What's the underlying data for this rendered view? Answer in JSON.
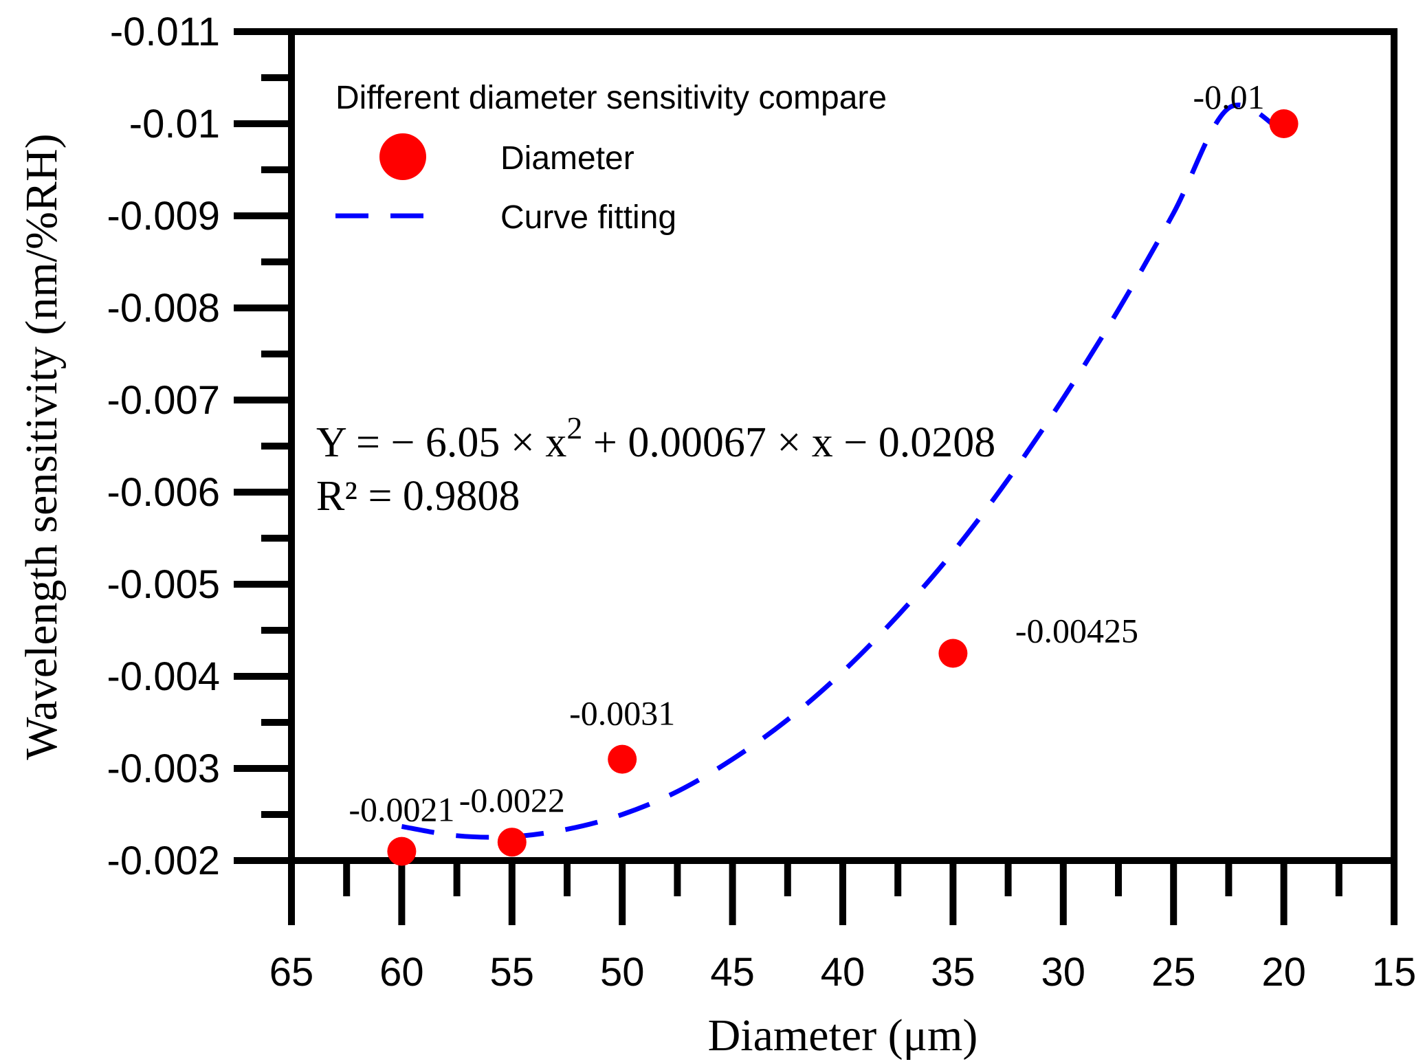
{
  "chart_data": {
    "type": "scatter",
    "xlabel": "Diameter (μm)",
    "ylabel": "Wavelength sensitivity (nm/%RH)",
    "xlim": [
      65,
      15
    ],
    "ylim": [
      -0.002,
      -0.011
    ],
    "x_ticks": [
      65,
      60,
      55,
      50,
      45,
      40,
      35,
      30,
      25,
      20,
      15
    ],
    "x_tick_labels": [
      "65",
      "60",
      "55",
      "50",
      "45",
      "40",
      "35",
      "30",
      "25",
      "20",
      "15"
    ],
    "y_ticks": [
      -0.002,
      -0.003,
      -0.004,
      -0.005,
      -0.006,
      -0.007,
      -0.008,
      -0.009,
      -0.01,
      -0.011
    ],
    "y_tick_labels": [
      "-0.002",
      "-0.003",
      "-0.004",
      "-0.005",
      "-0.006",
      "-0.007",
      "-0.008",
      "-0.009",
      "-0.01",
      "-0.011"
    ],
    "legend": {
      "title": "Different diameter sensitivity compare",
      "placement": "top-left",
      "entries": [
        {
          "label": "Diameter",
          "marker": "circle",
          "color": "#ff0000"
        },
        {
          "label": "Curve fitting",
          "marker": "dashed-line",
          "color": "#0000ff"
        }
      ]
    },
    "series": [
      {
        "name": "Diameter",
        "color": "#ff0000",
        "x": [
          60,
          55,
          50,
          35,
          20
        ],
        "y": [
          -0.0021,
          -0.0022,
          -0.0031,
          -0.00425,
          -0.01
        ],
        "labels": [
          "-0.0021",
          "-0.0022",
          "-0.0031",
          "-0.00425",
          "-0.01"
        ]
      },
      {
        "name": "Curve fitting",
        "color": "#0000ff",
        "style": "dashed",
        "x": [
          60,
          57.5,
          55,
          52.5,
          50,
          47.5,
          45,
          42.5,
          40,
          37.5,
          35,
          32.5,
          30,
          27.5,
          25,
          22.5,
          20
        ],
        "y": [
          -0.00237,
          -0.00227,
          -0.00226,
          -0.00234,
          -0.0025,
          -0.00275,
          -0.0031,
          -0.00353,
          -0.00405,
          -0.00466,
          -0.00535,
          -0.00614,
          -0.00702,
          -0.00798,
          -0.00903,
          -0.01017,
          -0.0099
        ]
      }
    ],
    "equation": {
      "line1_prefix": "Y = − 6.05 × x",
      "line1_sup": "2",
      "line1_suffix": " + 0.00067 × x − 0.0208",
      "line2": "R² = 0.9808"
    }
  }
}
